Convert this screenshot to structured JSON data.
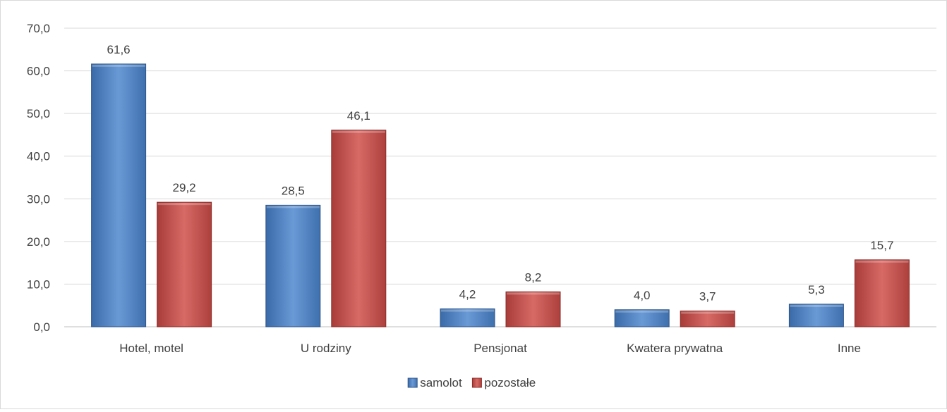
{
  "chart_data": {
    "type": "bar",
    "title": "",
    "xlabel": "",
    "ylabel": "",
    "ylim": [
      0,
      70
    ],
    "yticks": [
      "0,0",
      "10,0",
      "20,0",
      "30,0",
      "40,0",
      "50,0",
      "60,0",
      "70,0"
    ],
    "grid": true,
    "legend_position": "bottom",
    "categories": [
      "Hotel, motel",
      "U rodziny",
      "Pensjonat",
      "Kwatera prywatna",
      "Inne"
    ],
    "series": [
      {
        "name": "samolot",
        "color": "#4f81bd",
        "values": [
          61.6,
          28.5,
          4.2,
          4.0,
          5.3
        ],
        "labels": [
          "61,6",
          "28,5",
          "4,2",
          "4,0",
          "5,3"
        ]
      },
      {
        "name": "pozostałe",
        "color": "#c0504d",
        "values": [
          29.2,
          46.1,
          8.2,
          3.7,
          15.7
        ],
        "labels": [
          "29,2",
          "46,1",
          "8,2",
          "3,7",
          "15,7"
        ]
      }
    ]
  }
}
